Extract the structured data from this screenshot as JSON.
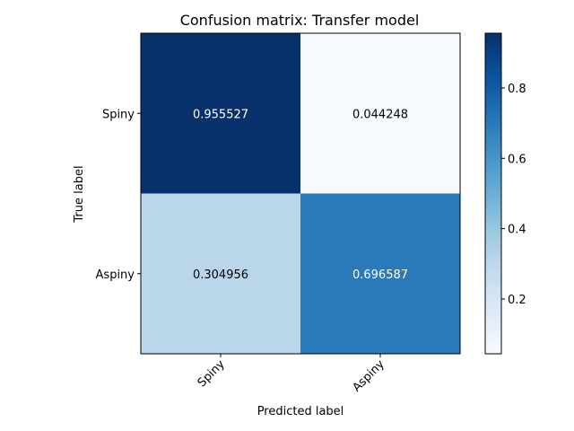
{
  "chart_data": {
    "type": "heatmap",
    "title": "Confusion matrix: Transfer model",
    "xlabel": "Predicted label",
    "ylabel": "True label",
    "x_categories": [
      "Spiny",
      "Aspiny"
    ],
    "y_categories": [
      "Spiny",
      "Aspiny"
    ],
    "values": [
      [
        0.955527,
        0.044248
      ],
      [
        0.304956,
        0.696587
      ]
    ],
    "value_labels": [
      [
        "0.955527",
        "0.044248"
      ],
      [
        "0.304956",
        "0.696587"
      ]
    ],
    "colormap": "Blues",
    "color_range": [
      0.044248,
      0.955527
    ],
    "colorbar_ticks": [
      "0.2",
      "0.4",
      "0.6",
      "0.8"
    ],
    "colorbar_tick_values": [
      0.2,
      0.4,
      0.6,
      0.8
    ],
    "text_colors": {
      "light": "#ffffff",
      "dark": "#000000"
    },
    "grid": false
  }
}
